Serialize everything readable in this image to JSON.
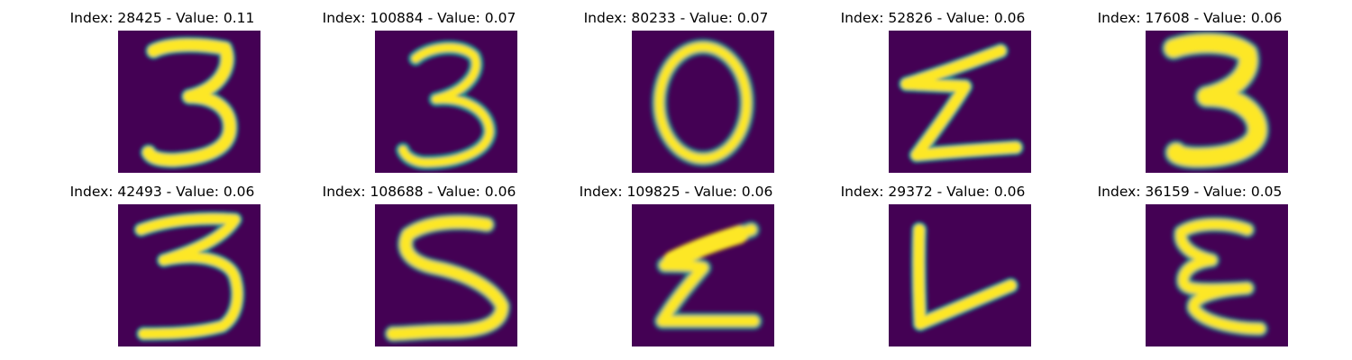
{
  "colormap": {
    "background": "#440154",
    "edge": "#21918c",
    "mid": "#5ec962",
    "peak": "#fde725"
  },
  "panels": [
    {
      "title": "Index: 28425 - Value: 0.11",
      "digit": "3"
    },
    {
      "title": "Index: 100884 - Value: 0.07",
      "digit": "3"
    },
    {
      "title": "Index: 80233 - Value: 0.07",
      "digit": "0"
    },
    {
      "title": "Index: 52826 - Value: 0.06",
      "digit": "2 (mirrored)"
    },
    {
      "title": "Index: 17608 - Value: 0.06",
      "digit": "3"
    },
    {
      "title": "Index: 42493 - Value: 0.06",
      "digit": "3"
    },
    {
      "title": "Index: 108688 - Value: 0.06",
      "digit": "5 (mirrored)"
    },
    {
      "title": "Index: 109825 - Value: 0.06",
      "digit": "2 (mirrored)"
    },
    {
      "title": "Index: 29372 - Value: 0.06",
      "digit": "7 (rotated)"
    },
    {
      "title": "Index: 36159 - Value: 0.05",
      "digit": "3 (mirrored)"
    }
  ]
}
